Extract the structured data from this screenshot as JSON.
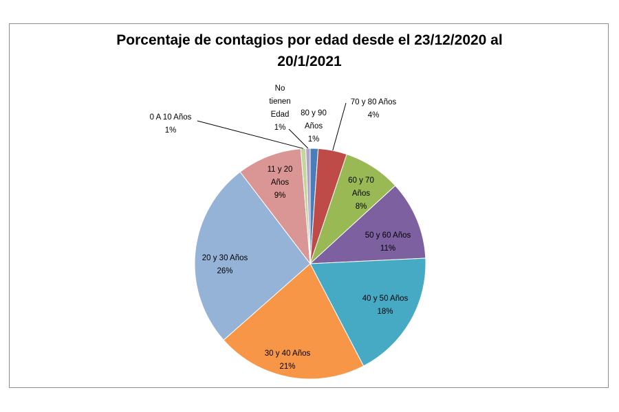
{
  "chart_data": {
    "type": "pie",
    "title_lines": [
      "Porcentaje de contagios por edad desde el 23/12/2020 al",
      "20/1/2021"
    ],
    "slices": [
      {
        "name": "80 y 90 Años",
        "label_lines": [
          "80 y 90",
          "Años"
        ],
        "pct_label": "1%",
        "value": 1.1,
        "color": "#4a7ebb"
      },
      {
        "name": "70 y 80 Años",
        "label_lines": [
          "70 y 80 Años"
        ],
        "pct_label": "4%",
        "value": 4.0,
        "color": "#be4b48"
      },
      {
        "name": "60 y 70 Años",
        "label_lines": [
          "60 y 70",
          "Años"
        ],
        "pct_label": "8%",
        "value": 8.0,
        "color": "#98b954"
      },
      {
        "name": "50 y 60 Años",
        "label_lines": [
          "50 y 60 Años"
        ],
        "pct_label": "11%",
        "value": 11.0,
        "color": "#7d60a0"
      },
      {
        "name": "40 y 50 Años",
        "label_lines": [
          "40 y 50 Años"
        ],
        "pct_label": "18%",
        "value": 18.0,
        "color": "#46aac5"
      },
      {
        "name": "30 y 40 Años",
        "label_lines": [
          "30 y 40 Años"
        ],
        "pct_label": "21%",
        "value": 21.0,
        "color": "#f79646"
      },
      {
        "name": "20 y 30 Años",
        "label_lines": [
          "20 y 30 Años"
        ],
        "pct_label": "26%",
        "value": 26.0,
        "color": "#95b3d7"
      },
      {
        "name": "11 y 20 Años",
        "label_lines": [
          "11 y 20",
          "Años"
        ],
        "pct_label": "9%",
        "value": 9.0,
        "color": "#d99694"
      },
      {
        "name": "0 A 10 Años",
        "label_lines": [
          "0 A 10 Años"
        ],
        "pct_label": "1%",
        "value": 0.7,
        "color": "#c3d69b"
      },
      {
        "name": "No tienen Edad",
        "label_lines": [
          "No",
          "tienen",
          "Edad"
        ],
        "pct_label": "1%",
        "value": 0.6,
        "color": "#b3a2c7"
      }
    ]
  }
}
